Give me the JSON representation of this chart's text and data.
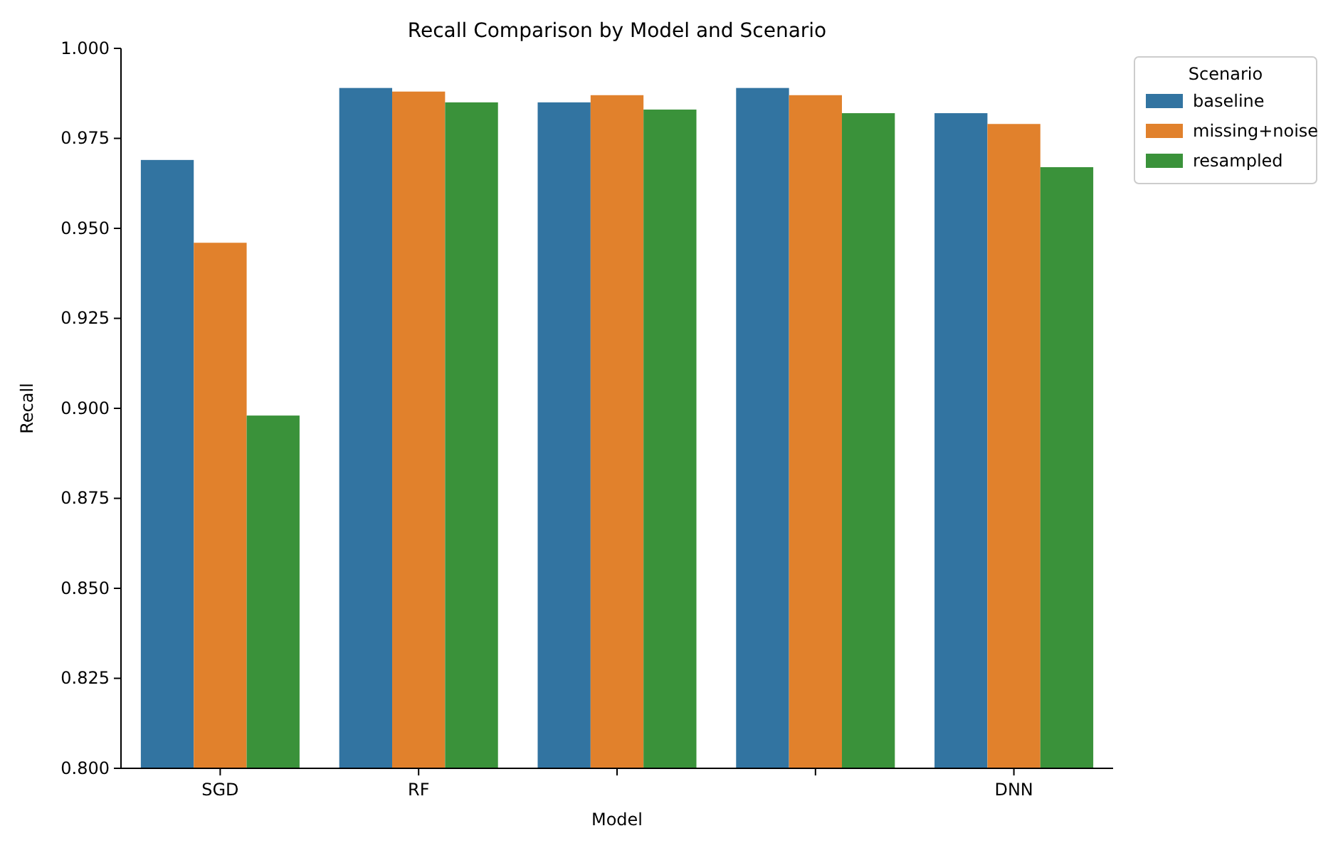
{
  "chart_data": {
    "type": "bar",
    "title": "Recall Comparison by Model and Scenario",
    "xlabel": "Model",
    "ylabel": "Recall",
    "legend_title": "Scenario",
    "legend": "right",
    "grid": false,
    "categories": [
      "SGD",
      "RF",
      null,
      null,
      "DNN"
    ],
    "series": [
      {
        "name": "baseline",
        "color": "#3274a1",
        "values": [
          0.969,
          0.989,
          0.985,
          0.989,
          0.982
        ]
      },
      {
        "name": "missing+noise",
        "color": "#e1812c",
        "values": [
          0.946,
          0.988,
          0.987,
          0.987,
          0.979
        ]
      },
      {
        "name": "resampled",
        "color": "#3a923a",
        "values": [
          0.898,
          0.985,
          0.983,
          0.982,
          0.967
        ]
      }
    ],
    "ylim": [
      0.8,
      1.0
    ],
    "yticks": [
      {
        "value": 0.8,
        "label": "0.800"
      },
      {
        "value": 0.825,
        "label": "0.825"
      },
      {
        "value": 0.85,
        "label": "0.850"
      },
      {
        "value": 0.875,
        "label": "0.875"
      },
      {
        "value": 0.9,
        "label": "0.900"
      },
      {
        "value": 0.925,
        "label": "0.925"
      },
      {
        "value": 0.95,
        "label": "0.950"
      },
      {
        "value": 0.975,
        "label": "0.975"
      },
      {
        "value": 1.0,
        "label": "1.000"
      }
    ]
  }
}
